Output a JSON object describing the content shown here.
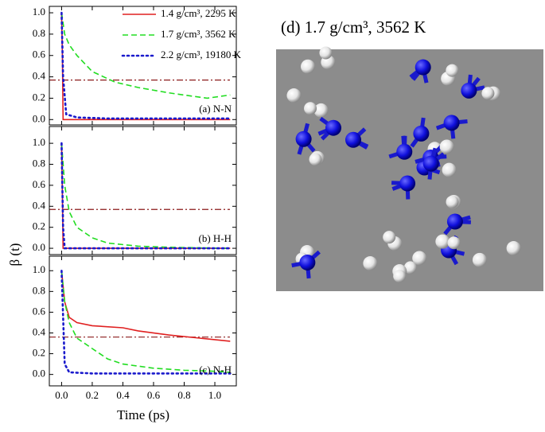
{
  "figure": {
    "ylabel": "β (t)",
    "xlabel": "Time (ps)"
  },
  "image": {
    "title": "(d) 1.7 g/cm³, 3562 K"
  },
  "chart_data": [
    {
      "type": "line",
      "title": "(a) N-N",
      "xlim": [
        -0.08,
        1.14
      ],
      "ylim": [
        -0.05,
        1.06
      ],
      "xticks": [
        0,
        0.2,
        0.4,
        0.6,
        0.8,
        1
      ],
      "yticks": [
        {
          "value": 0,
          "label": "0.0"
        },
        0.2,
        0.4,
        0.6,
        0.8,
        {
          "value": 1,
          "label": "1.0"
        }
      ],
      "reference_line": 0.37,
      "reference_color": "#8b1a1a",
      "legend": "upper right",
      "series": [
        {
          "name": "1.4 g/cm³, 2295 K",
          "color": "#e02020",
          "linestyle": "solid",
          "x": [
            0,
            0.005,
            0.01,
            1.1
          ],
          "values": [
            1,
            0.6,
            0,
            0
          ]
        },
        {
          "name": "1.7 g/cm³, 3562 K",
          "color": "#22dd22",
          "linestyle": "dashed",
          "x": [
            0,
            0.02,
            0.05,
            0.1,
            0.2,
            0.35,
            0.5,
            0.7,
            0.85,
            0.95,
            1.1
          ],
          "values": [
            1,
            0.8,
            0.7,
            0.6,
            0.45,
            0.35,
            0.3,
            0.25,
            0.22,
            0.2,
            0.23
          ]
        },
        {
          "name": "2.2 g/cm³, 19180 K",
          "color": "#1a1acc",
          "linestyle": "dotted",
          "x": [
            0,
            0.01,
            0.03,
            0.1,
            0.3,
            1.1
          ],
          "values": [
            1,
            0.4,
            0.05,
            0.02,
            0.01,
            0.01
          ]
        }
      ]
    },
    {
      "type": "line",
      "title": "(b) H-H",
      "xlim": [
        -0.08,
        1.14
      ],
      "ylim": [
        -0.06,
        1.16
      ],
      "xticks": [
        0,
        0.2,
        0.4,
        0.6,
        0.8,
        1
      ],
      "yticks": [
        {
          "value": 0,
          "label": "0.0"
        },
        0.2,
        0.4,
        0.6,
        0.8,
        {
          "value": 1,
          "label": "1.0"
        }
      ],
      "reference_line": 0.37,
      "reference_color": "#8b1a1a",
      "series": [
        {
          "color": "#e02020",
          "linestyle": "solid",
          "x": [
            0,
            0.005,
            0.01,
            1.1
          ],
          "values": [
            1,
            0.5,
            0,
            0
          ]
        },
        {
          "color": "#22dd22",
          "linestyle": "dashed",
          "x": [
            0,
            0.02,
            0.05,
            0.1,
            0.2,
            0.3,
            0.5,
            0.7,
            1.1
          ],
          "values": [
            1,
            0.6,
            0.35,
            0.2,
            0.1,
            0.05,
            0.02,
            0.01,
            0
          ]
        },
        {
          "color": "#1a1acc",
          "linestyle": "dotted",
          "x": [
            0,
            0.01,
            0.02,
            1.1
          ],
          "values": [
            1,
            0.2,
            0,
            0
          ]
        }
      ]
    },
    {
      "type": "line",
      "title": "(c) N-H",
      "xlabel": "Time (ps)",
      "xlim": [
        -0.08,
        1.14
      ],
      "ylim": [
        -0.11,
        1.14
      ],
      "xticks": [
        {
          "value": 0,
          "label": "0.0"
        },
        0.2,
        0.4,
        0.6,
        0.8,
        {
          "value": 1,
          "label": "1.0"
        }
      ],
      "yticks": [
        {
          "value": 0,
          "label": "0.0"
        },
        0.2,
        0.4,
        0.6,
        0.8,
        {
          "value": 1,
          "label": "1.0"
        }
      ],
      "reference_line": 0.36,
      "reference_color": "#8b1a1a",
      "series": [
        {
          "color": "#e02020",
          "linestyle": "solid",
          "x": [
            0,
            0.02,
            0.05,
            0.1,
            0.2,
            0.4,
            0.5,
            0.7,
            0.9,
            1.1
          ],
          "values": [
            1,
            0.7,
            0.55,
            0.5,
            0.47,
            0.45,
            0.42,
            0.38,
            0.35,
            0.32
          ]
        },
        {
          "color": "#22dd22",
          "linestyle": "dashed",
          "x": [
            0,
            0.02,
            0.05,
            0.1,
            0.2,
            0.3,
            0.4,
            0.6,
            0.8,
            1.0,
            1.1
          ],
          "values": [
            1,
            0.7,
            0.5,
            0.35,
            0.25,
            0.15,
            0.1,
            0.06,
            0.04,
            0.03,
            0.02
          ]
        },
        {
          "color": "#1a1acc",
          "linestyle": "dotted",
          "x": [
            0,
            0.02,
            0.05,
            0.2,
            1.1
          ],
          "values": [
            1,
            0.1,
            0.02,
            0.01,
            0.01
          ]
        }
      ]
    }
  ]
}
